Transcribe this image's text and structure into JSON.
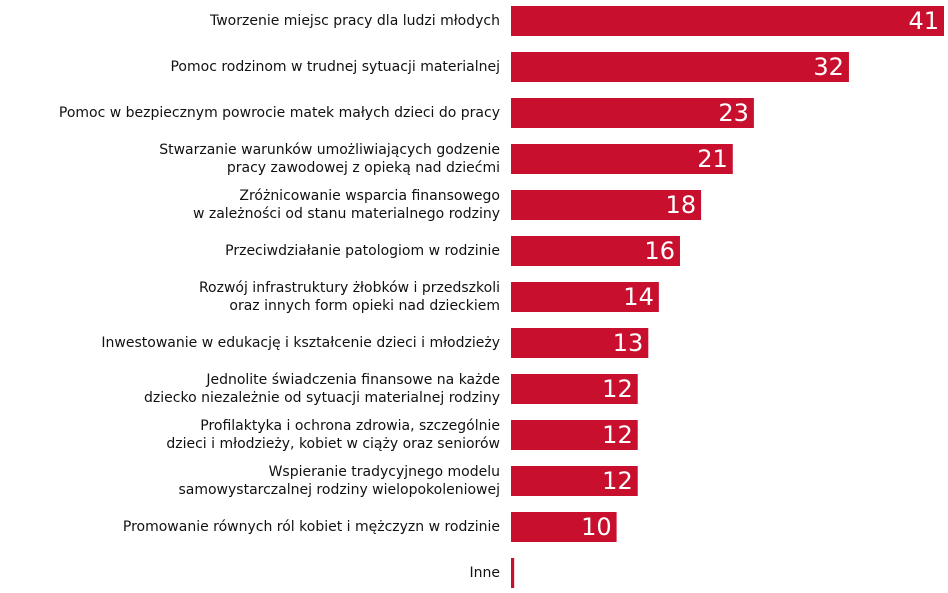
{
  "chart_data": {
    "type": "hbar",
    "color": "#c8102e",
    "categories": [
      [
        "Tworzenie miejsc pracy dla ludzi młodych"
      ],
      [
        "Pomoc rodzinom w trudnej sytuacji materialnej"
      ],
      [
        "Pomoc w bezpiecznym powrocie matek małych dzieci do pracy"
      ],
      [
        "Stwarzanie warunków umożliwiających godzenie",
        "pracy zawodowej z opieką nad dziećmi"
      ],
      [
        "Zróżnicowanie wsparcia finansowego",
        "w zależności od stanu materialnego rodziny"
      ],
      [
        "Przeciwdziałanie patologiom w rodzinie"
      ],
      [
        "Rozwój infrastruktury żłobków i przedszkoli",
        "oraz innych form opieki nad dzieckiem"
      ],
      [
        "Inwestowanie w edukację i kształcenie dzieci i młodzieży"
      ],
      [
        "Jednolite świadczenia finansowe na każde",
        "dziecko niezależnie od sytuacji materialnej rodziny"
      ],
      [
        "Profilaktyka i ochrona zdrowia, szczególnie",
        "dzieci i młodzieży, kobiet w ciąży oraz seniorów"
      ],
      [
        "Wspieranie tradycyjnego modelu",
        "samowystarczalnej rodziny wielopokoleniowej"
      ],
      [
        "Promowanie równych ról kobiet i mężczyzn w rodzinie"
      ],
      [
        "Inne"
      ]
    ],
    "values": [
      41,
      32,
      23,
      21,
      18,
      16,
      14,
      13,
      12,
      12,
      12,
      10,
      0.3
    ],
    "xlim": [
      0,
      41
    ]
  }
}
